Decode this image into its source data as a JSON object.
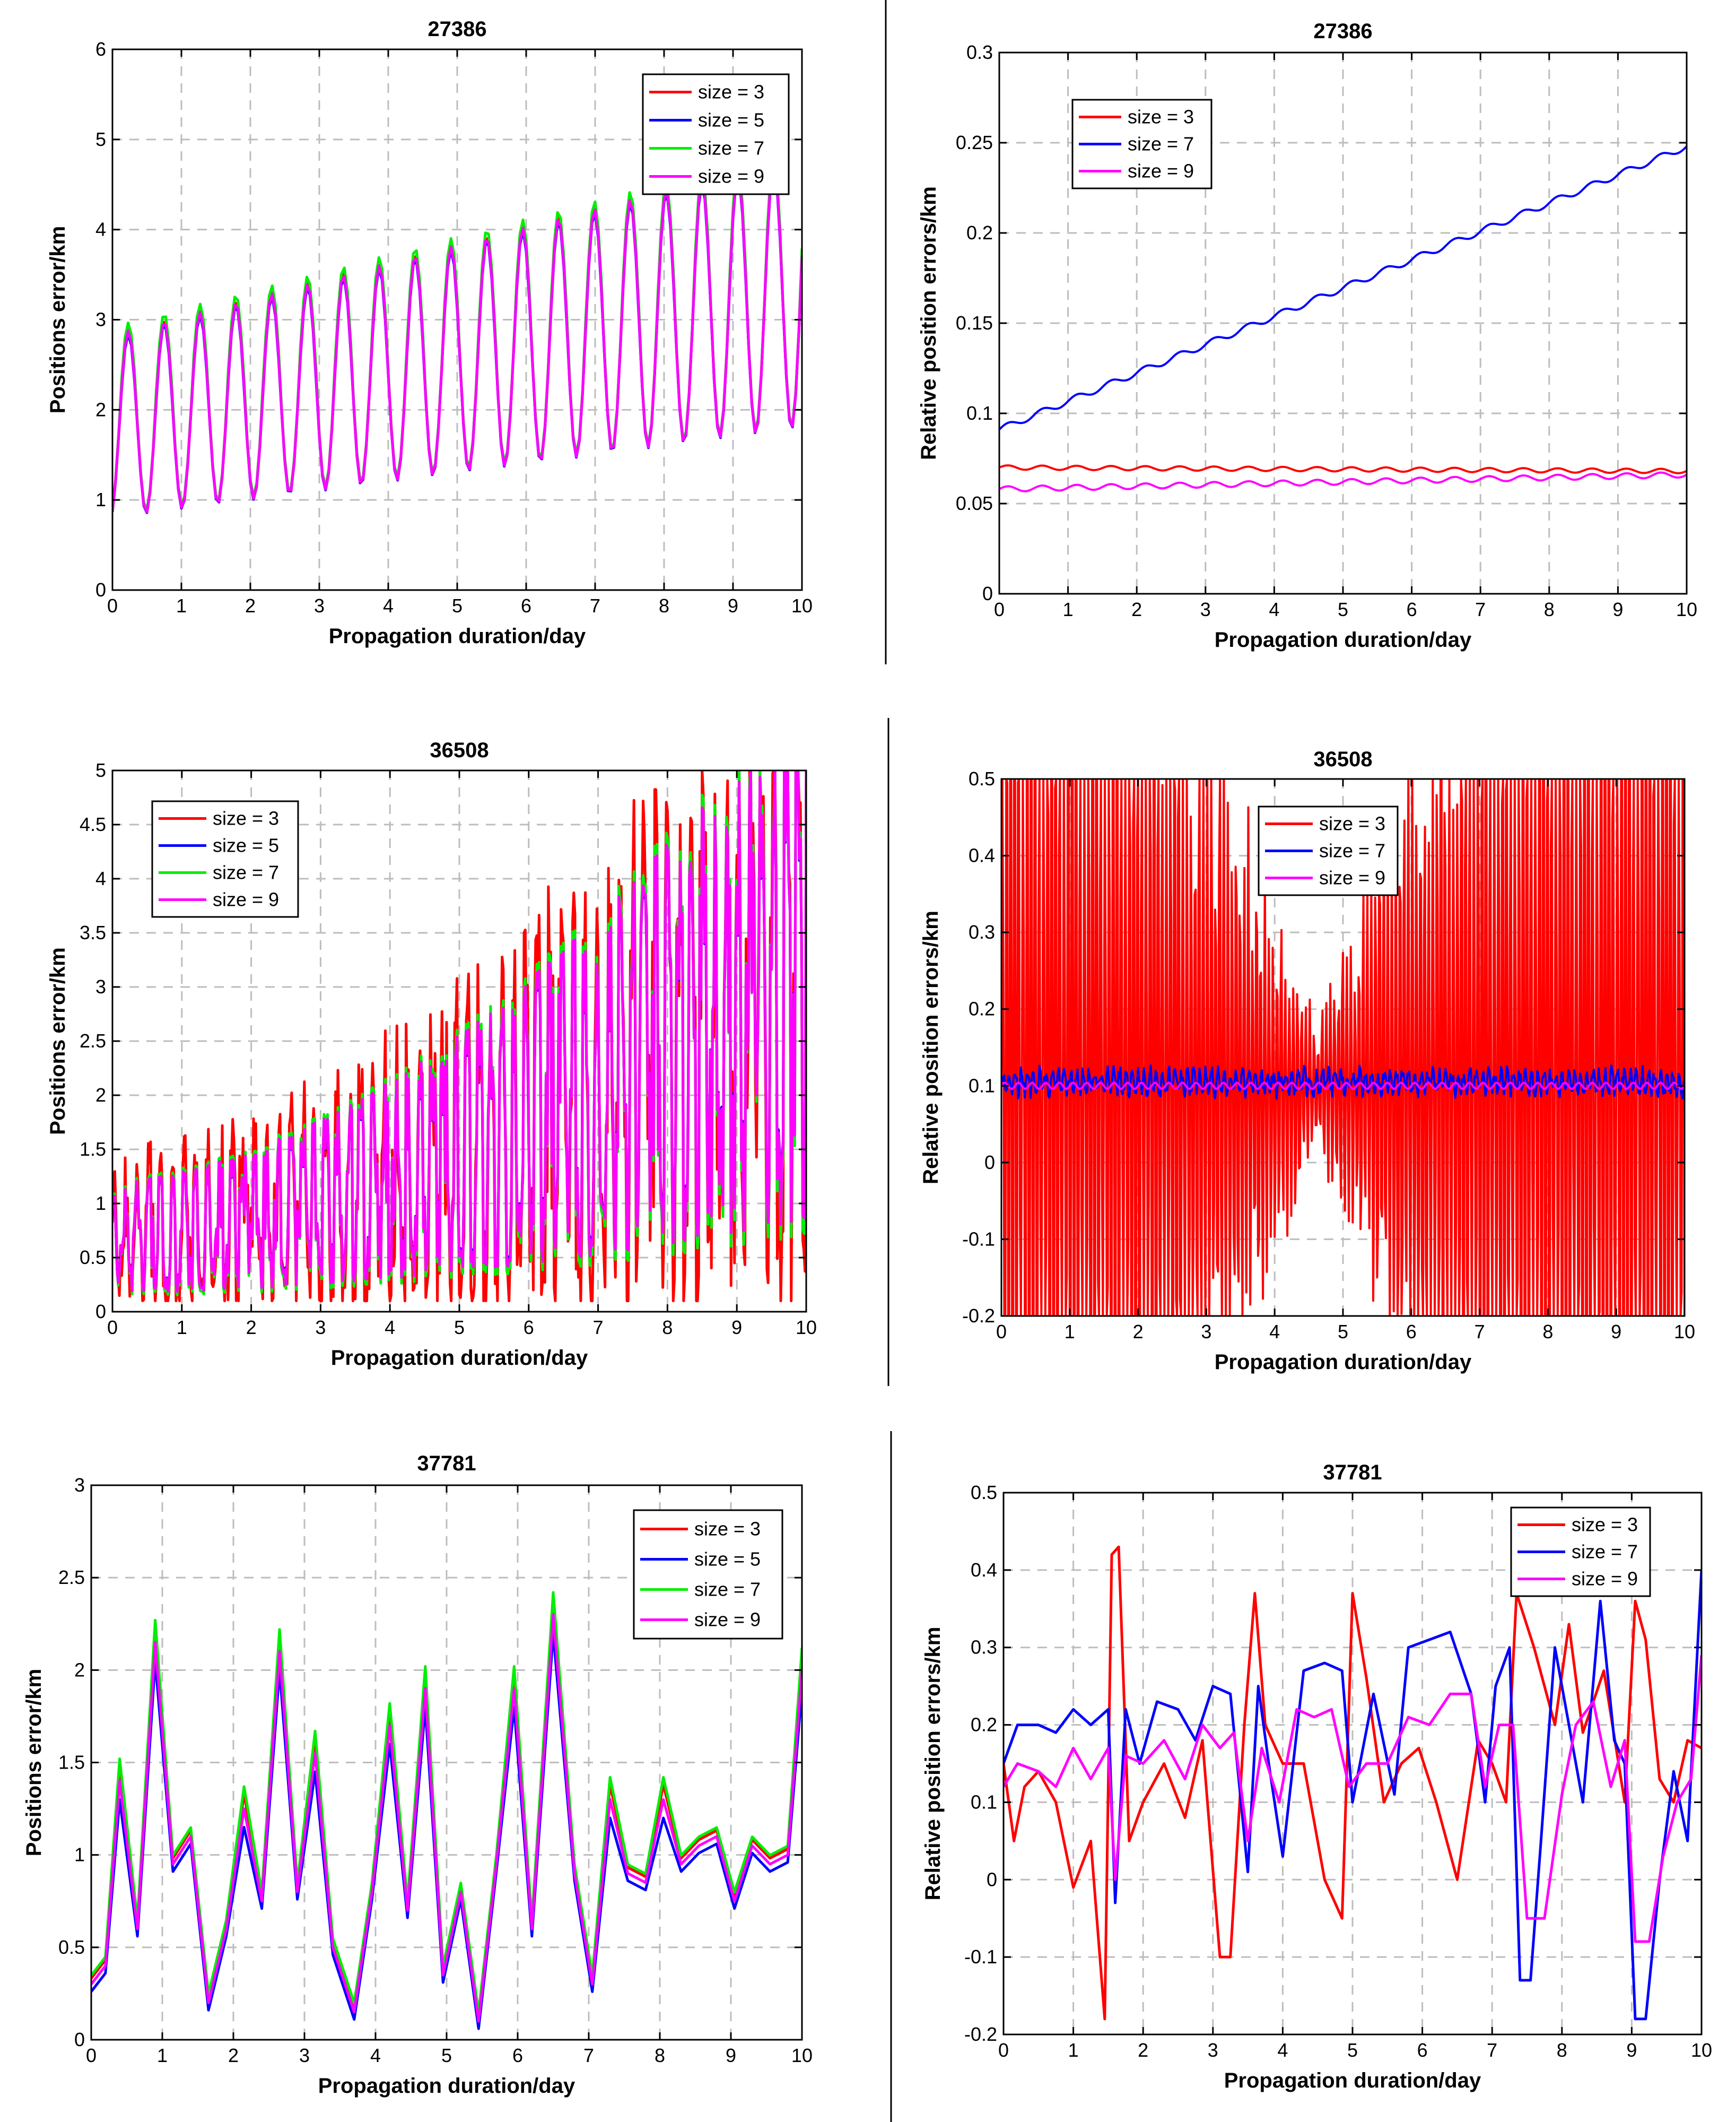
{
  "figure": {
    "description_count": 6
  },
  "chart_data": [
    {
      "type": "line",
      "title": "27386",
      "xlabel": "Propagation duration/day",
      "ylabel": "Positions error/km",
      "xlim": [
        0,
        10
      ],
      "ylim": [
        0,
        6
      ],
      "xticks": [
        "0",
        "1",
        "2",
        "3",
        "4",
        "5",
        "6",
        "7",
        "8",
        "9",
        "10"
      ],
      "yticks": [
        "0",
        "1",
        "2",
        "3",
        "4",
        "5",
        "6"
      ],
      "grid": true,
      "legend_position": "top-right",
      "series": [
        {
          "name": "size = 3",
          "color": "#ff0000"
        },
        {
          "name": "size = 5",
          "color": "#0000ff"
        },
        {
          "name": "size = 7",
          "color": "#00ee00"
        },
        {
          "name": "size = 9",
          "color": "#ff00ff"
        }
      ]
    },
    {
      "type": "line",
      "title": "27386",
      "xlabel": "Propagation duration/day",
      "ylabel": "Relative position errors/km",
      "xlim": [
        0,
        10
      ],
      "ylim": [
        0,
        0.3
      ],
      "xticks": [
        "0",
        "1",
        "2",
        "3",
        "4",
        "5",
        "6",
        "7",
        "8",
        "9",
        "10"
      ],
      "yticks": [
        "0",
        "0.05",
        "0.1",
        "0.15",
        "0.2",
        "0.25",
        "0.3"
      ],
      "grid": true,
      "legend_position": "top-left",
      "series": [
        {
          "name": "size = 3",
          "color": "#ff0000"
        },
        {
          "name": "size = 7",
          "color": "#0000ff"
        },
        {
          "name": "size = 9",
          "color": "#ff00ff"
        }
      ]
    },
    {
      "type": "line",
      "title": "36508",
      "xlabel": "Propagation duration/day",
      "ylabel": "Positions error/km",
      "xlim": [
        0,
        10
      ],
      "ylim": [
        0,
        5
      ],
      "xticks": [
        "0",
        "1",
        "2",
        "3",
        "4",
        "5",
        "6",
        "7",
        "8",
        "9",
        "10"
      ],
      "yticks": [
        "0",
        "0.5",
        "1",
        "1.5",
        "2",
        "2.5",
        "3",
        "3.5",
        "4",
        "4.5",
        "5"
      ],
      "grid": true,
      "legend_position": "top-left",
      "series": [
        {
          "name": "size = 3",
          "color": "#ff0000"
        },
        {
          "name": "size = 5",
          "color": "#0000ff"
        },
        {
          "name": "size = 7",
          "color": "#00ee00"
        },
        {
          "name": "size = 9",
          "color": "#ff00ff"
        }
      ]
    },
    {
      "type": "line",
      "title": "36508",
      "xlabel": "Propagation duration/day",
      "ylabel": "Relative position errors/km",
      "xlim": [
        0,
        10
      ],
      "ylim": [
        -0.2,
        0.5
      ],
      "xticks": [
        "0",
        "1",
        "2",
        "3",
        "4",
        "5",
        "6",
        "7",
        "8",
        "9",
        "10"
      ],
      "yticks": [
        "-0.2",
        "-0.1",
        "0",
        "0.1",
        "0.2",
        "0.3",
        "0.4",
        "0.5"
      ],
      "grid": true,
      "legend_position": "top-center",
      "series": [
        {
          "name": "size = 3",
          "color": "#ff0000"
        },
        {
          "name": "size = 7",
          "color": "#0000ff"
        },
        {
          "name": "size = 9",
          "color": "#ff00ff"
        }
      ]
    },
    {
      "type": "line",
      "title": "37781",
      "xlabel": "Propagation duration/day",
      "ylabel": "Positions error/km",
      "xlim": [
        0,
        10
      ],
      "ylim": [
        0,
        3
      ],
      "xticks": [
        "0",
        "1",
        "2",
        "3",
        "4",
        "5",
        "6",
        "7",
        "8",
        "9",
        "10"
      ],
      "yticks": [
        "0",
        "0.5",
        "1",
        "1.5",
        "2",
        "2.5",
        "3"
      ],
      "grid": true,
      "legend_position": "top-right",
      "series": [
        {
          "name": "size = 3",
          "color": "#ff0000"
        },
        {
          "name": "size = 5",
          "color": "#0000ff"
        },
        {
          "name": "size = 7",
          "color": "#00ee00"
        },
        {
          "name": "size = 9",
          "color": "#ff00ff"
        }
      ]
    },
    {
      "type": "line",
      "title": "37781",
      "xlabel": "Propagation duration/day",
      "ylabel": "Relative position errors/km",
      "xlim": [
        0,
        10
      ],
      "ylim": [
        -0.2,
        0.5
      ],
      "xticks": [
        "0",
        "1",
        "2",
        "3",
        "4",
        "5",
        "6",
        "7",
        "8",
        "9",
        "10"
      ],
      "yticks": [
        "-0.2",
        "-0.1",
        "0",
        "0.1",
        "0.2",
        "0.3",
        "0.4",
        "0.5"
      ],
      "grid": true,
      "legend_position": "top-right",
      "series": [
        {
          "name": "size = 3",
          "color": "#ff0000"
        },
        {
          "name": "size = 7",
          "color": "#0000ff"
        },
        {
          "name": "size = 9",
          "color": "#ff00ff"
        }
      ]
    }
  ]
}
